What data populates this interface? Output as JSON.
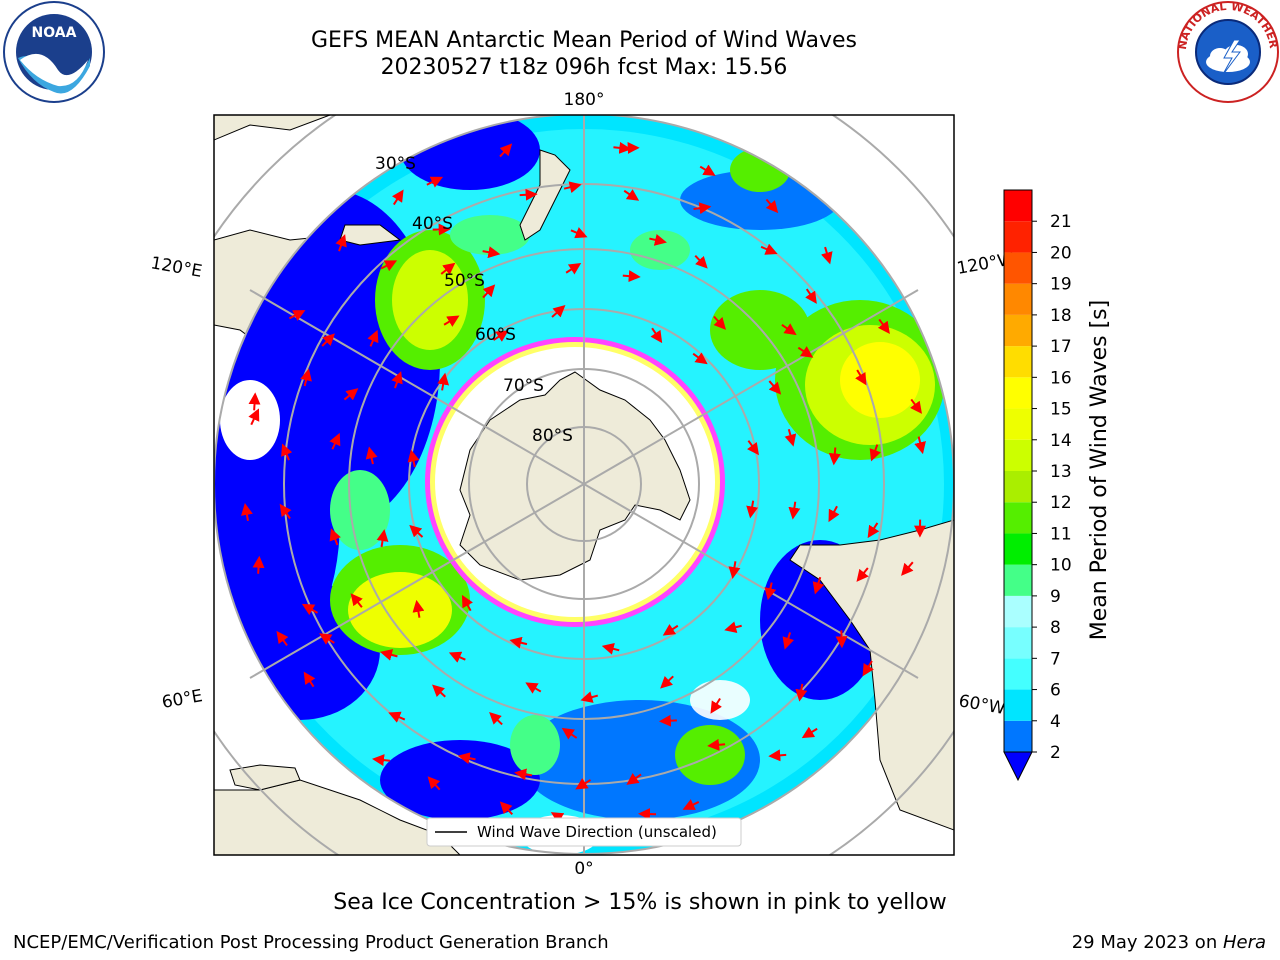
{
  "header": {
    "title_line1": "GEFS MEAN Antarctic Mean Period of Wind Waves",
    "title_line2": "20230527 t18z 096h fcst   Max: 15.56"
  },
  "logos": {
    "left": {
      "name": "noaa-logo",
      "text": "NOAA"
    },
    "right": {
      "name": "nws-logo",
      "text": "NATIONAL WEATHER SERVICE"
    }
  },
  "map": {
    "projection": "south-polar-stereographic",
    "longitude_labels": {
      "top": "180°",
      "bottom": "0°",
      "left_upper": "120°E",
      "left_lower": "60°E",
      "right_upper": "120°W",
      "right_lower": "60°W"
    },
    "latitude_labels": [
      "30°S",
      "40°S",
      "50°S",
      "60°S",
      "70°S",
      "80°S"
    ],
    "legend": "Wind Wave Direction (unscaled)",
    "arrow_color": "#ff0000",
    "land_color": "#eeebd9",
    "ice_colors": [
      "#ff44ff",
      "#ffff66"
    ]
  },
  "colorbar": {
    "label": "Mean Period of Wind Waves [s]",
    "ticks": [
      "2",
      "4",
      "6",
      "7",
      "8",
      "9",
      "10",
      "11",
      "12",
      "13",
      "14",
      "15",
      "16",
      "17",
      "18",
      "19",
      "20",
      "21"
    ],
    "colors": [
      "#0077ff",
      "#00e5ff",
      "#44ffff",
      "#77ffff",
      "#aaffff",
      "#44ff88",
      "#00ee00",
      "#55ee00",
      "#aaee00",
      "#ccff00",
      "#eeff00",
      "#ffff00",
      "#ffdd00",
      "#ffaa00",
      "#ff8800",
      "#ff5500",
      "#ff2200",
      "#ff0000"
    ],
    "under_color": "#0000ff"
  },
  "caption": "Sea Ice Concentration > 15% is shown in pink to yellow",
  "footer": {
    "left": "NCEP/EMC/Verification Post Processing Product Generation Branch",
    "right_prefix": "29 May 2023 on ",
    "right_host": "Hera"
  }
}
